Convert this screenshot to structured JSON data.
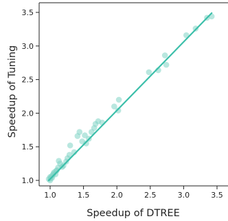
{
  "chart_data": {
    "type": "scatter",
    "title": "",
    "xlabel": "Speedup of DTREE",
    "ylabel": "Speedup of Tuning",
    "xlim": [
      0.9,
      3.5
    ],
    "ylim": [
      0.9,
      3.6
    ],
    "xticks": [
      "1.0",
      "1.5",
      "2.0",
      "2.5",
      "3.0",
      "3.5"
    ],
    "yticks": [
      "1.0",
      "1.5",
      "2.0",
      "2.5",
      "3.0",
      "3.5"
    ],
    "grid": false,
    "point_color": "#7fd3c4",
    "line_color": "#3cbfaa",
    "fit_line": {
      "x": [
        0.98,
        3.42
      ],
      "y": [
        1.0,
        3.49
      ]
    },
    "points": [
      [
        0.98,
        1.02
      ],
      [
        1.0,
        1.0
      ],
      [
        1.0,
        1.05
      ],
      [
        1.01,
        1.03
      ],
      [
        1.02,
        1.06
      ],
      [
        1.03,
        1.04
      ],
      [
        1.04,
        1.08
      ],
      [
        1.05,
        1.1
      ],
      [
        1.06,
        1.12
      ],
      [
        1.08,
        1.09
      ],
      [
        1.09,
        1.14
      ],
      [
        1.1,
        1.15
      ],
      [
        1.12,
        1.19
      ],
      [
        1.13,
        1.29
      ],
      [
        1.15,
        1.25
      ],
      [
        1.18,
        1.2
      ],
      [
        1.2,
        1.22
      ],
      [
        1.24,
        1.28
      ],
      [
        1.26,
        1.33
      ],
      [
        1.29,
        1.38
      ],
      [
        1.3,
        1.52
      ],
      [
        1.36,
        1.42
      ],
      [
        1.41,
        1.66
      ],
      [
        1.44,
        1.72
      ],
      [
        1.48,
        1.58
      ],
      [
        1.52,
        1.67
      ],
      [
        1.54,
        1.55
      ],
      [
        1.58,
        1.62
      ],
      [
        1.62,
        1.72
      ],
      [
        1.66,
        1.78
      ],
      [
        1.68,
        1.84
      ],
      [
        1.72,
        1.88
      ],
      [
        1.78,
        1.86
      ],
      [
        1.96,
        2.1
      ],
      [
        2.02,
        2.04
      ],
      [
        2.03,
        2.2
      ],
      [
        2.48,
        2.61
      ],
      [
        2.62,
        2.64
      ],
      [
        2.72,
        2.86
      ],
      [
        2.74,
        2.72
      ],
      [
        3.04,
        3.16
      ],
      [
        3.18,
        3.26
      ],
      [
        3.35,
        3.42
      ],
      [
        3.42,
        3.44
      ]
    ]
  }
}
